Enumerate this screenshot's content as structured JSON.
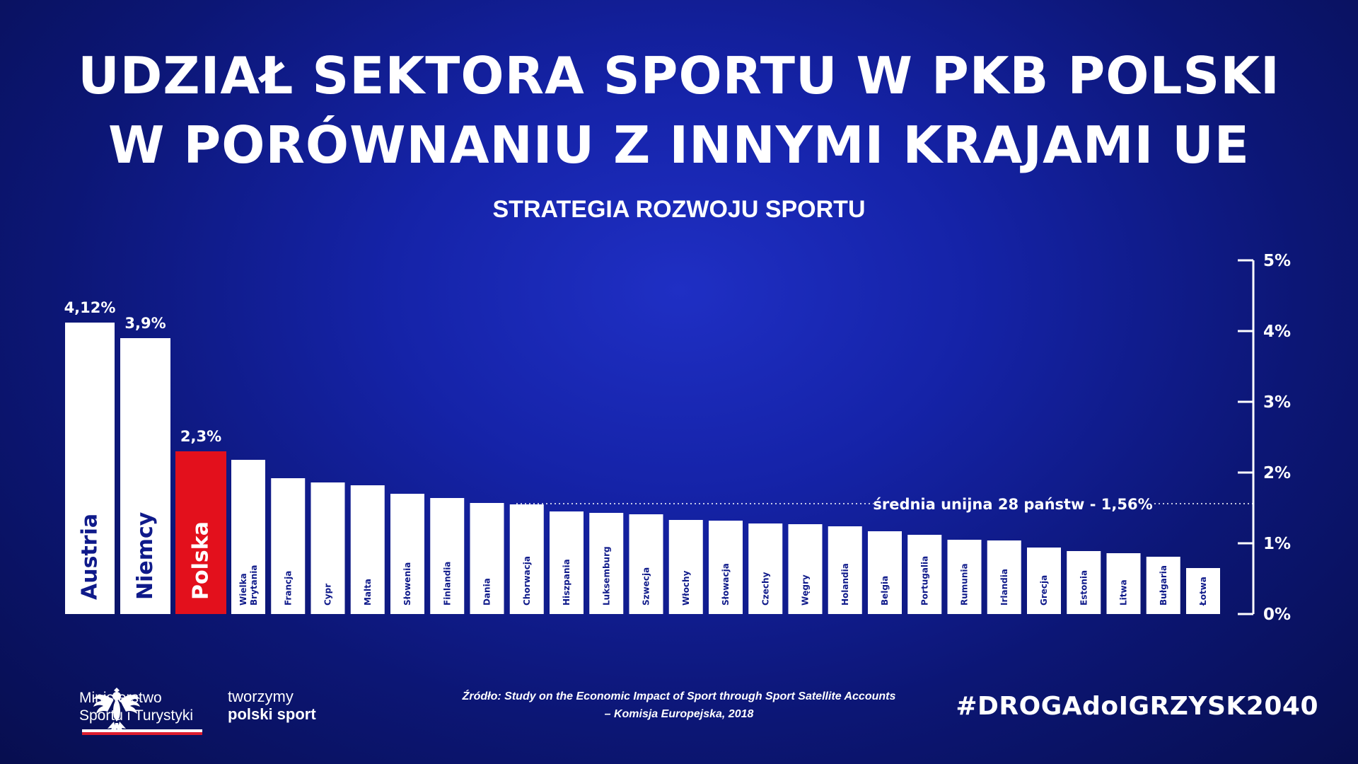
{
  "header": {
    "title_line1": "UDZIAŁ SEKTORA SPORTU W PKB POLSKI",
    "title_line2": "W PORÓWNANIU Z INNYMI KRAJAMI UE",
    "subtitle": "STRATEGIA ROZWOJU SPORTU"
  },
  "footer": {
    "ministry_line1": "Ministerstwo",
    "ministry_line2": "Sportu i Turystyki",
    "tworzymy_line1": "tworzymy",
    "tworzymy_line2": "polski sport",
    "source_line1": "Źródło: Study on the Economic Impact of Sport through Sport Satellite Accounts",
    "source_line2": "– Komisja Europejska, 2018",
    "hashtag": "#DROGAdoIGRZYSK2040"
  },
  "colors": {
    "background": "#1523a8",
    "bar": "#ffffff",
    "highlight_bar": "#e3101c",
    "text": "#ffffff",
    "flag_red": "#dc1c2e"
  },
  "chart_data": {
    "type": "bar",
    "title": "UDZIAŁ SEKTORA SPORTU W PKB POLSKI W PORÓWNANIU Z INNYMI KRAJAMI UE",
    "subtitle": "STRATEGIA ROZWOJU SPORTU",
    "categories": [
      "Austria",
      "Niemcy",
      "Polska",
      "Wielka Brytania",
      "Francja",
      "Cypr",
      "Malta",
      "Słowenia",
      "Finlandia",
      "Dania",
      "Chorwacja",
      "Hiszpania",
      "Luksemburg",
      "Szwecja",
      "Włochy",
      "Słowacja",
      "Czechy",
      "Węgry",
      "Holandia",
      "Belgia",
      "Portugalia",
      "Rumunia",
      "Irlandia",
      "Grecja",
      "Estonia",
      "Litwa",
      "Bułgaria",
      "Łotwa"
    ],
    "values": [
      4.12,
      3.9,
      2.3,
      2.18,
      1.92,
      1.86,
      1.82,
      1.7,
      1.64,
      1.57,
      1.55,
      1.45,
      1.43,
      1.41,
      1.33,
      1.32,
      1.28,
      1.27,
      1.24,
      1.17,
      1.12,
      1.05,
      1.04,
      0.94,
      0.89,
      0.86,
      0.81,
      0.65
    ],
    "highlight": "Polska",
    "data_labels": [
      {
        "category": "Austria",
        "text": "4,12%"
      },
      {
        "category": "Niemcy",
        "text": "3,9%"
      },
      {
        "category": "Polska",
        "text": "2,3%"
      }
    ],
    "ylim": [
      0,
      5
    ],
    "y_ticks": [
      0,
      1,
      2,
      3,
      4,
      5
    ],
    "y_tick_labels": [
      "0%",
      "1%",
      "2%",
      "3%",
      "4%",
      "5%"
    ],
    "y_axis_side": "right",
    "reference_line": {
      "value": 1.56,
      "label": "średnia unijna 28 państw - 1,56%"
    },
    "grid": false,
    "legend": "none",
    "xlabel": "",
    "ylabel": ""
  }
}
